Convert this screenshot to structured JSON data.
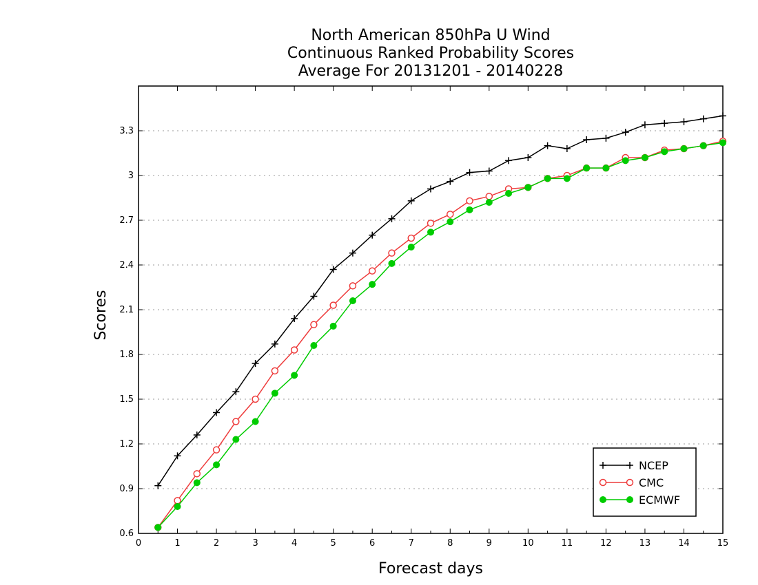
{
  "chart_data": {
    "type": "line",
    "title": [
      "North American 850hPa U Wind",
      "Continuous Ranked Probability Scores",
      "Average For 20131201 - 20140228"
    ],
    "xlabel": "Forecast days",
    "ylabel": "Scores",
    "xlim": [
      0,
      15
    ],
    "ylim": [
      0.6,
      3.6
    ],
    "xticks": [
      0,
      1,
      2,
      3,
      4,
      5,
      6,
      7,
      8,
      9,
      10,
      11,
      12,
      13,
      14,
      15
    ],
    "yticks": [
      0.6,
      0.9,
      1.2,
      1.5,
      1.8,
      2.1,
      2.4,
      2.7,
      3.0,
      3.3
    ],
    "ytick_labels": [
      "0.6",
      "0.9",
      "1.2",
      "1.5",
      "1.8",
      "2.1",
      "2.4",
      "2.7",
      "3",
      "3.3"
    ],
    "grid": "horizontal-dotted",
    "legend_position": "bottom-right",
    "x": [
      0.5,
      1,
      1.5,
      2,
      2.5,
      3,
      3.5,
      4,
      4.5,
      5,
      5.5,
      6,
      6.5,
      7,
      7.5,
      8,
      8.5,
      9,
      9.5,
      10,
      10.5,
      11,
      11.5,
      12,
      12.5,
      13,
      13.5,
      14,
      14.5,
      15
    ],
    "series": [
      {
        "name": "NCEP",
        "color": "#000000",
        "marker": "plus",
        "values": [
          0.92,
          1.12,
          1.26,
          1.41,
          1.55,
          1.74,
          1.87,
          2.04,
          2.19,
          2.37,
          2.48,
          2.6,
          2.71,
          2.83,
          2.91,
          2.96,
          3.02,
          3.03,
          3.1,
          3.12,
          3.2,
          3.18,
          3.24,
          3.25,
          3.29,
          3.34,
          3.35,
          3.36,
          3.38,
          3.4
        ]
      },
      {
        "name": "CMC",
        "color": "#ee3b3b",
        "marker": "open-circle",
        "values": [
          0.64,
          0.82,
          1.0,
          1.16,
          1.35,
          1.5,
          1.69,
          1.83,
          2.0,
          2.13,
          2.26,
          2.36,
          2.48,
          2.58,
          2.68,
          2.74,
          2.83,
          2.86,
          2.91,
          2.92,
          2.98,
          3.0,
          3.05,
          3.05,
          3.12,
          3.12,
          3.17,
          3.18,
          3.2,
          3.23
        ]
      },
      {
        "name": "ECMWF",
        "color": "#00cc00",
        "marker": "filled-circle",
        "values": [
          0.64,
          0.78,
          0.94,
          1.06,
          1.23,
          1.35,
          1.54,
          1.66,
          1.86,
          1.99,
          2.16,
          2.27,
          2.41,
          2.52,
          2.62,
          2.69,
          2.77,
          2.82,
          2.88,
          2.92,
          2.98,
          2.98,
          3.05,
          3.05,
          3.1,
          3.12,
          3.16,
          3.18,
          3.2,
          3.22
        ]
      }
    ]
  }
}
